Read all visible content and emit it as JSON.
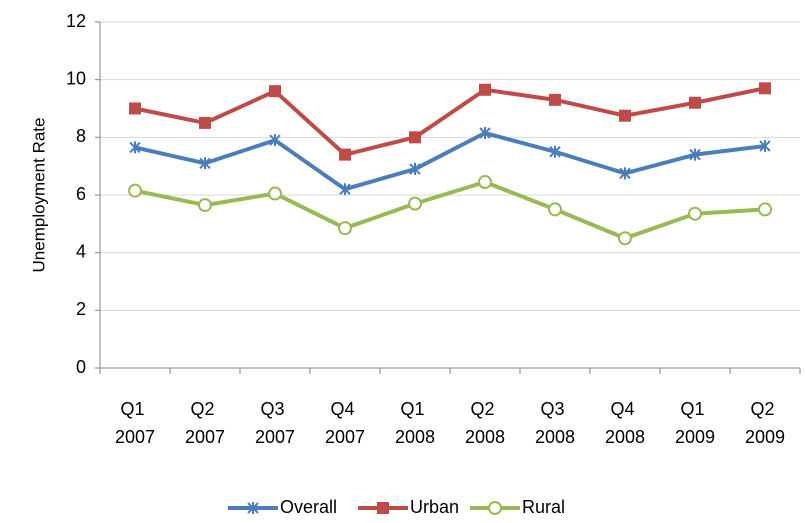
{
  "chart_data": {
    "type": "line",
    "y_label": "Unemployment Rate",
    "categories": [
      "Q1 2007",
      "Q2 2007",
      "Q3 2007",
      "Q4 2007",
      "Q1 2008",
      "Q2 2008",
      "Q3 2008",
      "Q4 2008",
      "Q1 2009",
      "Q2 2009"
    ],
    "series": [
      {
        "name": "Overall",
        "color": "#4a7ebb",
        "marker": "star",
        "values": [
          7.65,
          7.1,
          7.9,
          6.2,
          6.9,
          8.15,
          7.5,
          6.75,
          7.4,
          7.7
        ]
      },
      {
        "name": "Urban",
        "color": "#be4b48",
        "marker": "square",
        "values": [
          9.0,
          8.5,
          9.6,
          7.4,
          8.0,
          9.65,
          9.3,
          8.75,
          9.2,
          9.7
        ]
      },
      {
        "name": "Rural",
        "color": "#98b954",
        "marker": "circle",
        "values": [
          6.15,
          5.65,
          6.05,
          4.85,
          5.7,
          6.45,
          5.5,
          4.5,
          5.35,
          5.5
        ]
      }
    ],
    "ylim": [
      0,
      12
    ],
    "yticks": [
      0,
      2,
      4,
      6,
      8,
      10,
      12
    ],
    "grid": true,
    "legend": "bottom"
  }
}
